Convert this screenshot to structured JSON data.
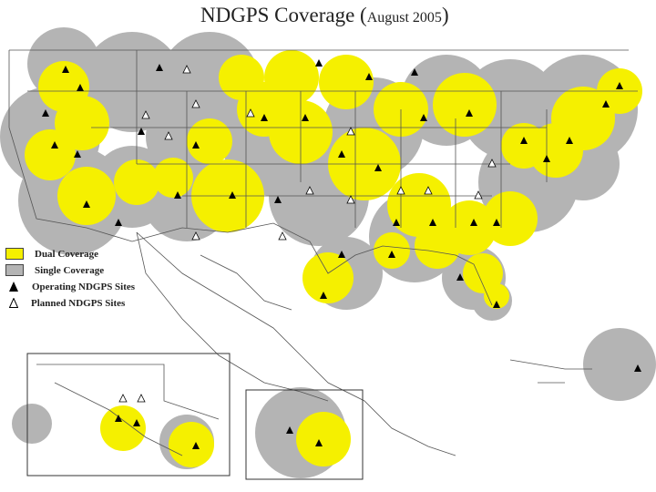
{
  "title": {
    "main": "NDGPS Coverage (",
    "date": "August 2005",
    "close": ")"
  },
  "legend": [
    {
      "key": "dual",
      "label": "Dual Coverage",
      "color": "#f5f000"
    },
    {
      "key": "single",
      "label": "Single Coverage",
      "color": "#b4b4b4"
    },
    {
      "key": "operating",
      "label": "Operating NDGPS Sites",
      "icon": "filled-triangle-icon"
    },
    {
      "key": "planned",
      "label": "Planned NDGPS Sites",
      "icon": "outline-triangle-icon"
    }
  ],
  "colors": {
    "dual": "#f5f000",
    "single": "#b4b4b4",
    "lines": "#555555",
    "operating": "#000000"
  },
  "insets": [
    "alaska",
    "hawaii"
  ]
}
